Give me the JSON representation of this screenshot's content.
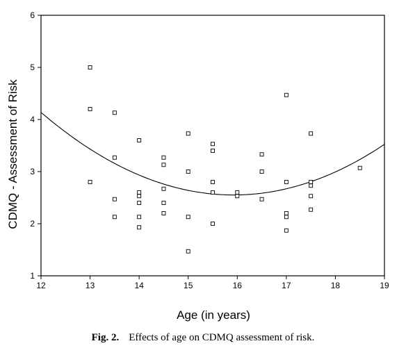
{
  "caption": {
    "label": "Fig. 2.",
    "text": "Effects of age on CDMQ assessment of risk."
  },
  "chart_data": {
    "type": "scatter",
    "title": "",
    "xlabel": "Age (in years)",
    "ylabel": "CDMQ - Assessment of Risk",
    "xlim": [
      12,
      19
    ],
    "ylim": [
      1,
      6
    ],
    "xticks": [
      12,
      13,
      14,
      15,
      16,
      17,
      18,
      19
    ],
    "yticks": [
      1,
      2,
      3,
      4,
      5,
      6
    ],
    "grid": false,
    "legend": "none",
    "marker": "open-square",
    "points": [
      {
        "x": 13,
        "y": 5.0
      },
      {
        "x": 13,
        "y": 4.2
      },
      {
        "x": 13,
        "y": 2.8
      },
      {
        "x": 13.5,
        "y": 4.13
      },
      {
        "x": 13.5,
        "y": 3.27
      },
      {
        "x": 13.5,
        "y": 2.47
      },
      {
        "x": 13.5,
        "y": 2.13
      },
      {
        "x": 14,
        "y": 3.6
      },
      {
        "x": 14,
        "y": 2.6
      },
      {
        "x": 14,
        "y": 2.53
      },
      {
        "x": 14,
        "y": 2.4
      },
      {
        "x": 14,
        "y": 2.13
      },
      {
        "x": 14,
        "y": 1.93
      },
      {
        "x": 14.5,
        "y": 3.27
      },
      {
        "x": 14.5,
        "y": 3.13
      },
      {
        "x": 14.5,
        "y": 2.67
      },
      {
        "x": 14.5,
        "y": 2.4
      },
      {
        "x": 14.5,
        "y": 2.2
      },
      {
        "x": 15,
        "y": 3.73
      },
      {
        "x": 15,
        "y": 3.0
      },
      {
        "x": 15,
        "y": 2.13
      },
      {
        "x": 15,
        "y": 1.47
      },
      {
        "x": 15.5,
        "y": 3.53
      },
      {
        "x": 15.5,
        "y": 3.4
      },
      {
        "x": 15.5,
        "y": 2.8
      },
      {
        "x": 15.5,
        "y": 2.6
      },
      {
        "x": 15.5,
        "y": 2.0
      },
      {
        "x": 16,
        "y": 2.6
      },
      {
        "x": 16,
        "y": 2.53
      },
      {
        "x": 16.5,
        "y": 3.33
      },
      {
        "x": 16.5,
        "y": 3.0
      },
      {
        "x": 16.5,
        "y": 2.47
      },
      {
        "x": 17,
        "y": 4.47
      },
      {
        "x": 17,
        "y": 2.8
      },
      {
        "x": 17,
        "y": 2.2
      },
      {
        "x": 17,
        "y": 2.13
      },
      {
        "x": 17,
        "y": 1.87
      },
      {
        "x": 17.5,
        "y": 3.73
      },
      {
        "x": 17.5,
        "y": 2.8
      },
      {
        "x": 17.5,
        "y": 2.73
      },
      {
        "x": 17.5,
        "y": 2.53
      },
      {
        "x": 17.5,
        "y": 2.27
      },
      {
        "x": 18.5,
        "y": 3.07
      }
    ],
    "fit_curve": {
      "type": "quadratic",
      "points": [
        {
          "x": 12,
          "y": 4.13
        },
        {
          "x": 13,
          "y": 3.45
        },
        {
          "x": 14,
          "y": 2.92
        },
        {
          "x": 15,
          "y": 2.64
        },
        {
          "x": 16,
          "y": 2.55
        },
        {
          "x": 17,
          "y": 2.67
        },
        {
          "x": 18,
          "y": 3.0
        },
        {
          "x": 19,
          "y": 3.52
        }
      ]
    }
  }
}
